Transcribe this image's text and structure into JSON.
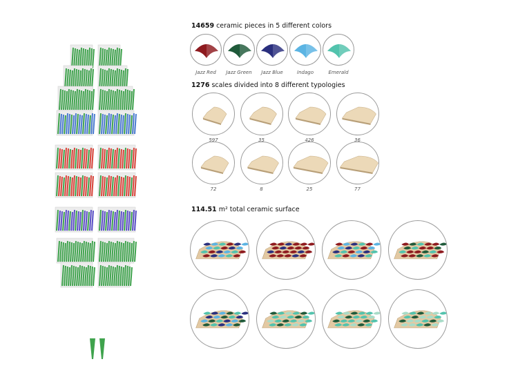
{
  "colors_section": {
    "count": "14659",
    "text": " ceramic pieces in 5 different colors",
    "items": [
      {
        "label": "Jazz Red",
        "color": "#8e1a1f"
      },
      {
        "label": "Jazz Green",
        "color": "#1f5a3a"
      },
      {
        "label": "Jazz Blue",
        "color": "#2a2f7e"
      },
      {
        "label": "Indago",
        "color": "#5bb4e3"
      },
      {
        "label": "Emerald",
        "color": "#52c3ad"
      }
    ]
  },
  "typology_section": {
    "count": "1276",
    "text": " scales divided into 8 different typologies",
    "items": [
      "597",
      "35",
      "426",
      "36",
      "72",
      "8",
      "25",
      "77"
    ]
  },
  "surface_section": {
    "count": "114.51",
    "text": " m² total ceramic surface",
    "panels": [
      {
        "colors": [
          "#2a2f7e",
          "#5bb4e3",
          "#52c3ad",
          "#8e1a1f"
        ]
      },
      {
        "colors": [
          "#8e1a1f",
          "#8e1a1f",
          "#2a2f7e",
          "#8e1a1f"
        ]
      },
      {
        "colors": [
          "#8e1a1f",
          "#5bb4e3",
          "#2a2f7e",
          "#52c3ad"
        ]
      },
      {
        "colors": [
          "#8e1a1f",
          "#1f5a3a",
          "#52c3ad",
          "#8e1a1f"
        ]
      },
      {
        "colors": [
          "#52c3ad",
          "#2a2f7e",
          "#5bb4e3",
          "#1f5a3a"
        ]
      },
      {
        "colors": [
          "#1f5a3a",
          "#52c3ad",
          "#a8dcc8",
          "#52c3ad"
        ]
      },
      {
        "colors": [
          "#52c3ad",
          "#a8dcc8",
          "#1f5a3a",
          "#52c3ad"
        ]
      },
      {
        "colors": [
          "#a8dcc8",
          "#52c3ad",
          "#1f5a3a",
          "#a8dcc8"
        ]
      }
    ]
  },
  "structure_colors": [
    "#3fa34d",
    "#3fa34d",
    "#3fa34d",
    "#4a7bd0",
    "#d9443a",
    "#d9443a",
    "#5a4fc7",
    "#3fa34d",
    "#3fa34d"
  ]
}
